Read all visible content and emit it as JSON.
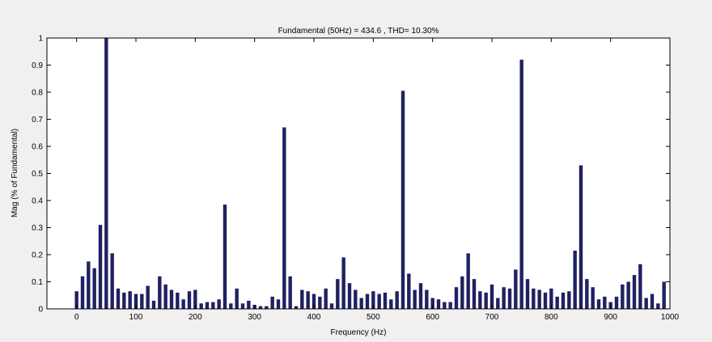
{
  "colors": {
    "bar": "#1f2160",
    "axes_background": "#ffffff",
    "figure_background": "#f0f0f0",
    "axis_line": "#000000"
  },
  "chart_data": {
    "type": "bar",
    "title": "Fundamental (50Hz) = 434.6 , THD= 10.30%",
    "xlabel": "Frequency (Hz)",
    "ylabel": "Mag (% of Fundamental)",
    "xlim": [
      -50,
      1000
    ],
    "ylim": [
      0,
      1
    ],
    "grid": false,
    "legend": "none",
    "xticks": [
      0,
      100,
      200,
      300,
      400,
      500,
      600,
      700,
      800,
      900,
      1000
    ],
    "xtick_labels": [
      "0",
      "100",
      "200",
      "300",
      "400",
      "500",
      "600",
      "700",
      "800",
      "900",
      "1000"
    ],
    "yticks": [
      0,
      0.1,
      0.2,
      0.3,
      0.4,
      0.5,
      0.6,
      0.7,
      0.8,
      0.9,
      1
    ],
    "ytick_labels": [
      "0",
      "0.1",
      "0.2",
      "0.3",
      "0.4",
      "0.5",
      "0.6",
      "0.7",
      "0.8",
      "0.9",
      "1"
    ],
    "series": [
      {
        "x": [
          0,
          10,
          20,
          30,
          40,
          50,
          60,
          70,
          80,
          90,
          100,
          110,
          120,
          130,
          140,
          150,
          160,
          170,
          180,
          190,
          200,
          210,
          220,
          230,
          240,
          250,
          260,
          270,
          280,
          290,
          300,
          310,
          320,
          330,
          340,
          350,
          360,
          370,
          380,
          390,
          400,
          410,
          420,
          430,
          440,
          450,
          460,
          470,
          480,
          490,
          500,
          510,
          520,
          530,
          540,
          550,
          560,
          570,
          580,
          590,
          600,
          610,
          620,
          630,
          640,
          650,
          660,
          670,
          680,
          690,
          700,
          710,
          720,
          730,
          740,
          750,
          760,
          770,
          780,
          790,
          800,
          810,
          820,
          830,
          840,
          850,
          860,
          870,
          880,
          890,
          900,
          910,
          920,
          930,
          940,
          950,
          960,
          970,
          980,
          990,
          1000
        ],
        "values": [
          0.065,
          0.12,
          0.175,
          0.15,
          0.31,
          1.0,
          0.205,
          0.075,
          0.06,
          0.065,
          0.055,
          0.055,
          0.085,
          0.03,
          0.12,
          0.09,
          0.07,
          0.06,
          0.035,
          0.065,
          0.07,
          0.02,
          0.025,
          0.025,
          0.035,
          0.385,
          0.02,
          0.075,
          0.02,
          0.03,
          0.015,
          0.01,
          0.01,
          0.045,
          0.035,
          0.67,
          0.12,
          0.01,
          0.07,
          0.065,
          0.055,
          0.045,
          0.075,
          0.02,
          0.11,
          0.19,
          0.095,
          0.07,
          0.04,
          0.055,
          0.065,
          0.055,
          0.06,
          0.035,
          0.065,
          0.805,
          0.13,
          0.07,
          0.095,
          0.07,
          0.04,
          0.035,
          0.025,
          0.025,
          0.08,
          0.12,
          0.205,
          0.11,
          0.065,
          0.06,
          0.09,
          0.04,
          0.08,
          0.075,
          0.145,
          0.92,
          0.11,
          0.075,
          0.07,
          0.06,
          0.075,
          0.045,
          0.06,
          0.065,
          0.215,
          0.53,
          0.11,
          0.08,
          0.035,
          0.045,
          0.025,
          0.045,
          0.09,
          0.1,
          0.125,
          0.165,
          0.04,
          0.055,
          0.02,
          0.1,
          0.0
        ]
      }
    ]
  }
}
